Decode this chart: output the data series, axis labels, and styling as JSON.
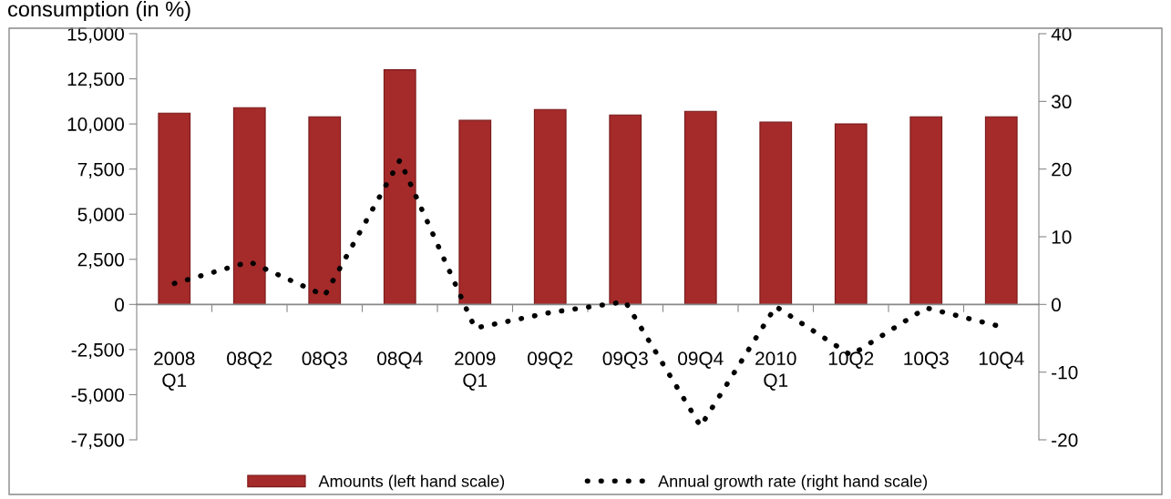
{
  "chart_data": {
    "type": "bar",
    "title": "consumption (in %)",
    "categories": [
      "2008\nQ1",
      "08Q2",
      "08Q3",
      "08Q4",
      "2009\nQ1",
      "09Q2",
      "09Q3",
      "09Q4",
      "2010\nQ1",
      "10Q2",
      "10Q3",
      "10Q4"
    ],
    "series": [
      {
        "name": "Amounts (left hand scale)",
        "color": "#a52a2a",
        "values": [
          10600,
          10900,
          10400,
          13000,
          10200,
          10800,
          10500,
          10700,
          10100,
          10000,
          10400,
          10400
        ]
      },
      {
        "name": "Annual growth rate (right hand scale)",
        "type": "line",
        "axis": "y2",
        "color": "#000000",
        "line_style": "dotted",
        "values": [
          3.1,
          6.3,
          1.3,
          21.3,
          -3.5,
          -1.2,
          0.4,
          -18,
          -0.3,
          -7.5,
          -0.5,
          -3.3
        ]
      }
    ],
    "ylim": [
      -7500,
      15000
    ],
    "yticks": [
      {
        "value": -7500,
        "label": "-7,500"
      },
      {
        "value": -5000,
        "label": "-5,000"
      },
      {
        "value": -2500,
        "label": "-2,500"
      },
      0,
      {
        "value": 2500,
        "label": "2,500"
      },
      {
        "value": 5000,
        "label": "5,000"
      },
      {
        "value": 7500,
        "label": "7,500"
      },
      {
        "value": 10000,
        "label": "10,000"
      },
      {
        "value": 12500,
        "label": "12,500"
      },
      {
        "value": 15000,
        "label": "15,000"
      }
    ],
    "y2lim": [
      -20,
      40
    ],
    "y2ticks": [
      -20,
      -10,
      0,
      10,
      20,
      30,
      40
    ],
    "grid": false,
    "legend": "bottom"
  }
}
